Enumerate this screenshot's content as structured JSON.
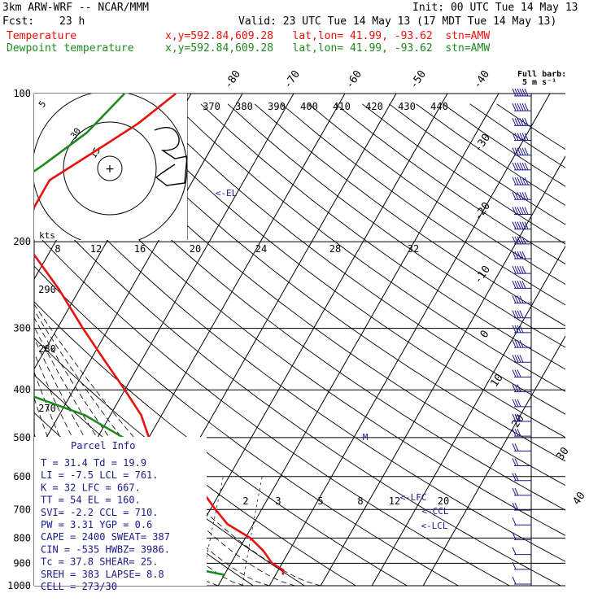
{
  "header": {
    "model": "3km ARW-WRF -- NCAR/MMM",
    "init": "Init: 00 UTC Tue 14 May 13",
    "fcst_label": "Fcst:",
    "fcst_value": "23 h",
    "valid": "Valid: 23 UTC Tue 14 May 13 (17 MDT Tue 14 May 13)",
    "temp_label": "Temperature",
    "dew_label": "Dewpoint temperature",
    "loc_text": "x,y=592.84,609.28   lat,lon= 41.99, -93.62  stn=AMW",
    "full_barb": "Full barb:",
    "full_barb_unit": "5 m s⁻¹"
  },
  "colors": {
    "temperature": "#e8120c",
    "dewpoint": "#1e8a1e",
    "info": "#1a1a8c",
    "grid": "#000000"
  },
  "chart_data": {
    "type": "line",
    "title": "",
    "ylabel": "",
    "pressure_ticks": [
      100,
      200,
      300,
      400,
      500,
      600,
      700,
      800,
      900,
      1000
    ],
    "skewed_temp_labels_top": [
      "-80",
      "-70",
      "-60",
      "-50",
      "-40"
    ],
    "skewed_temp_labels_right": [
      "-30",
      "-20",
      "-10",
      "0",
      "10",
      "20",
      "30",
      "40"
    ],
    "theta_labels": [
      "370",
      "380",
      "390",
      "400",
      "410",
      "420",
      "430",
      "440"
    ],
    "mixing_ratio_labels": [
      "8",
      "12",
      "16",
      "20",
      "24",
      "28",
      "32"
    ],
    "dry_adiabat_labels": [
      "290",
      "280",
      "270"
    ],
    "hodo_labels": [
      "kts",
      "5",
      "30",
      "15"
    ],
    "lower_labels": [
      "2",
      "3",
      "5",
      "8",
      "12",
      "20"
    ],
    "markers": [
      "<-EL",
      "<-LFC",
      "<-CCL",
      "<-LCL",
      "M"
    ],
    "series": [
      {
        "name": "Temperature",
        "points": [
          [
            100,
            -43
          ],
          [
            115,
            -47
          ],
          [
            130,
            -52
          ],
          [
            150,
            -58
          ],
          [
            170,
            -58
          ],
          [
            200,
            -56
          ],
          [
            250,
            -44
          ],
          [
            300,
            -35
          ],
          [
            350,
            -27
          ],
          [
            400,
            -20
          ],
          [
            450,
            -14
          ],
          [
            500,
            -10
          ],
          [
            550,
            -5
          ],
          [
            600,
            2
          ],
          [
            650,
            7
          ],
          [
            700,
            11
          ],
          [
            750,
            15
          ],
          [
            800,
            21
          ],
          [
            850,
            25
          ],
          [
            900,
            28
          ],
          [
            930,
            31
          ],
          [
            950,
            31.4
          ]
        ]
      },
      {
        "name": "Dewpoint temperature",
        "points": [
          [
            100,
            -53
          ],
          [
            120,
            -56
          ],
          [
            140,
            -61
          ],
          [
            160,
            -66
          ],
          [
            180,
            -68
          ],
          [
            200,
            -63
          ],
          [
            250,
            -55
          ],
          [
            300,
            -48
          ],
          [
            350,
            -45
          ],
          [
            380,
            -45
          ],
          [
            410,
            -38
          ],
          [
            450,
            -25
          ],
          [
            500,
            -15
          ],
          [
            550,
            -10
          ],
          [
            600,
            -7
          ],
          [
            650,
            -9
          ],
          [
            700,
            -4
          ],
          [
            750,
            -1
          ],
          [
            800,
            -1
          ],
          [
            850,
            1
          ],
          [
            880,
            3
          ],
          [
            900,
            9
          ],
          [
            930,
            15
          ],
          [
            950,
            19.9
          ]
        ]
      }
    ],
    "wind_barbs_speed_mps": [
      40,
      40,
      40,
      35,
      35,
      35,
      35,
      30,
      30,
      30,
      25,
      25,
      25,
      25,
      20,
      20,
      20,
      20,
      20,
      15,
      15,
      15,
      15,
      15,
      10,
      10,
      10,
      10,
      10,
      5,
      5,
      5,
      5,
      5
    ]
  },
  "parcel_info": {
    "title": "Parcel Info",
    "rows": [
      "T  =   31.4  Td =  19.9",
      "LI =   -7.5  LCL =  761.",
      "K  =     32  LFC =  667.",
      "TT =     54  EL  =  160.",
      "SVI=   -2.2  CCL =  710.",
      "PW =   3.31  YGP =   0.6",
      "CAPE = 2400  SWEAT=  387",
      "CIN =  -535  HWBZ= 3986.",
      "Tc =   37.8  SHEAR=  25.",
      "SREH =  383  LAPSE=  8.8",
      "CELL = 273/30"
    ]
  }
}
